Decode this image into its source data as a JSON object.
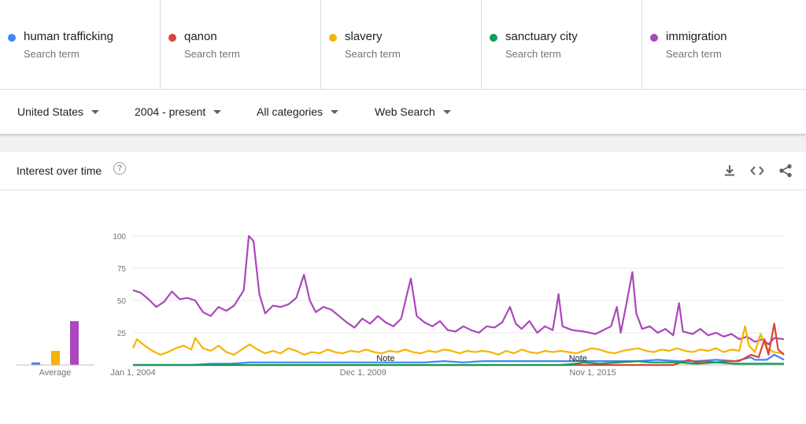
{
  "terms": [
    {
      "name": "human trafficking",
      "sub": "Search term",
      "color": "#4285f4"
    },
    {
      "name": "qanon",
      "sub": "Search term",
      "color": "#db4437"
    },
    {
      "name": "slavery",
      "sub": "Search term",
      "color": "#f4b400"
    },
    {
      "name": "sanctuary city",
      "sub": "Search term",
      "color": "#0f9d58"
    },
    {
      "name": "immigration",
      "sub": "Search term",
      "color": "#ab47bc"
    }
  ],
  "filters": {
    "region": "United States",
    "time": "2004 - present",
    "category": "All categories",
    "search_type": "Web Search"
  },
  "card": {
    "title": "Interest over time",
    "help_icon": "help-icon",
    "tools": [
      "download-icon",
      "embed-code-icon",
      "share-icon"
    ]
  },
  "chart_data": {
    "type": "line",
    "yticks": [
      25,
      50,
      75,
      100
    ],
    "ylim": [
      0,
      100
    ],
    "xlim": [
      2004.0,
      2020.75
    ],
    "xtick_labels": [
      {
        "label": "Jan 1, 2004",
        "x": 2004.0
      },
      {
        "label": "Dec 1, 2009",
        "x": 2009.92
      },
      {
        "label": "Nov 1, 2015",
        "x": 2015.83
      }
    ],
    "notes": [
      {
        "label": "Note",
        "x": 2010.5
      },
      {
        "label": "Note",
        "x": 2015.45
      }
    ],
    "average_label": "Average",
    "averages": [
      {
        "name": "human trafficking",
        "value": 2
      },
      {
        "name": "qanon",
        "value": 0
      },
      {
        "name": "slavery",
        "value": 11
      },
      {
        "name": "sanctuary city",
        "value": 0
      },
      {
        "name": "immigration",
        "value": 34
      }
    ],
    "series": [
      {
        "name": "immigration",
        "points": [
          [
            2004.0,
            58
          ],
          [
            2004.2,
            56
          ],
          [
            2004.4,
            51
          ],
          [
            2004.6,
            45
          ],
          [
            2004.8,
            49
          ],
          [
            2005.0,
            57
          ],
          [
            2005.2,
            51
          ],
          [
            2005.4,
            52
          ],
          [
            2005.6,
            50
          ],
          [
            2005.8,
            41
          ],
          [
            2006.0,
            38
          ],
          [
            2006.2,
            45
          ],
          [
            2006.4,
            42
          ],
          [
            2006.6,
            46
          ],
          [
            2006.85,
            58
          ],
          [
            2006.98,
            100
          ],
          [
            2007.1,
            96
          ],
          [
            2007.25,
            55
          ],
          [
            2007.4,
            40
          ],
          [
            2007.6,
            46
          ],
          [
            2007.8,
            45
          ],
          [
            2008.0,
            47
          ],
          [
            2008.2,
            52
          ],
          [
            2008.4,
            70
          ],
          [
            2008.55,
            50
          ],
          [
            2008.7,
            41
          ],
          [
            2008.9,
            45
          ],
          [
            2009.1,
            43
          ],
          [
            2009.3,
            38
          ],
          [
            2009.5,
            33
          ],
          [
            2009.7,
            29
          ],
          [
            2009.9,
            36
          ],
          [
            2010.1,
            32
          ],
          [
            2010.3,
            38
          ],
          [
            2010.5,
            33
          ],
          [
            2010.7,
            30
          ],
          [
            2010.9,
            36
          ],
          [
            2011.05,
            55
          ],
          [
            2011.15,
            67
          ],
          [
            2011.3,
            38
          ],
          [
            2011.5,
            33
          ],
          [
            2011.7,
            30
          ],
          [
            2011.9,
            34
          ],
          [
            2012.1,
            27
          ],
          [
            2012.3,
            26
          ],
          [
            2012.5,
            30
          ],
          [
            2012.7,
            27
          ],
          [
            2012.9,
            25
          ],
          [
            2013.1,
            30
          ],
          [
            2013.3,
            29
          ],
          [
            2013.5,
            33
          ],
          [
            2013.7,
            45
          ],
          [
            2013.85,
            32
          ],
          [
            2014.0,
            28
          ],
          [
            2014.2,
            34
          ],
          [
            2014.4,
            25
          ],
          [
            2014.6,
            30
          ],
          [
            2014.8,
            27
          ],
          [
            2014.9,
            45
          ],
          [
            2014.95,
            55
          ],
          [
            2015.05,
            30
          ],
          [
            2015.3,
            27
          ],
          [
            2015.6,
            26
          ],
          [
            2015.9,
            24
          ],
          [
            2016.1,
            27
          ],
          [
            2016.3,
            30
          ],
          [
            2016.45,
            45
          ],
          [
            2016.55,
            25
          ],
          [
            2016.7,
            48
          ],
          [
            2016.85,
            72
          ],
          [
            2016.95,
            40
          ],
          [
            2017.1,
            28
          ],
          [
            2017.3,
            30
          ],
          [
            2017.5,
            25
          ],
          [
            2017.7,
            28
          ],
          [
            2017.9,
            23
          ],
          [
            2018.05,
            48
          ],
          [
            2018.15,
            26
          ],
          [
            2018.4,
            24
          ],
          [
            2018.6,
            28
          ],
          [
            2018.8,
            23
          ],
          [
            2019.0,
            25
          ],
          [
            2019.2,
            22
          ],
          [
            2019.4,
            24
          ],
          [
            2019.6,
            20
          ],
          [
            2019.8,
            22
          ],
          [
            2020.0,
            18
          ],
          [
            2020.2,
            20
          ],
          [
            2020.35,
            16
          ],
          [
            2020.5,
            21
          ],
          [
            2020.75,
            20
          ]
        ]
      },
      {
        "name": "slavery",
        "points": [
          [
            2004.0,
            13
          ],
          [
            2004.1,
            20
          ],
          [
            2004.3,
            15
          ],
          [
            2004.5,
            11
          ],
          [
            2004.7,
            8
          ],
          [
            2004.9,
            10
          ],
          [
            2005.1,
            13
          ],
          [
            2005.3,
            15
          ],
          [
            2005.5,
            12
          ],
          [
            2005.6,
            21
          ],
          [
            2005.8,
            13
          ],
          [
            2006.0,
            11
          ],
          [
            2006.2,
            15
          ],
          [
            2006.4,
            10
          ],
          [
            2006.6,
            8
          ],
          [
            2006.8,
            12
          ],
          [
            2007.0,
            16
          ],
          [
            2007.2,
            12
          ],
          [
            2007.4,
            9
          ],
          [
            2007.6,
            11
          ],
          [
            2007.8,
            9
          ],
          [
            2008.0,
            13
          ],
          [
            2008.2,
            11
          ],
          [
            2008.4,
            8
          ],
          [
            2008.6,
            10
          ],
          [
            2008.8,
            9
          ],
          [
            2009.0,
            12
          ],
          [
            2009.2,
            10
          ],
          [
            2009.4,
            9
          ],
          [
            2009.6,
            11
          ],
          [
            2009.8,
            10
          ],
          [
            2010.0,
            12
          ],
          [
            2010.2,
            10
          ],
          [
            2010.4,
            9
          ],
          [
            2010.6,
            11
          ],
          [
            2010.8,
            10
          ],
          [
            2011.0,
            12
          ],
          [
            2011.2,
            10
          ],
          [
            2011.4,
            9
          ],
          [
            2011.6,
            11
          ],
          [
            2011.8,
            10
          ],
          [
            2012.0,
            12
          ],
          [
            2012.2,
            11
          ],
          [
            2012.4,
            9
          ],
          [
            2012.6,
            11
          ],
          [
            2012.8,
            10
          ],
          [
            2013.0,
            11
          ],
          [
            2013.2,
            10
          ],
          [
            2013.4,
            8
          ],
          [
            2013.6,
            11
          ],
          [
            2013.8,
            9
          ],
          [
            2014.0,
            12
          ],
          [
            2014.2,
            10
          ],
          [
            2014.4,
            9
          ],
          [
            2014.6,
            11
          ],
          [
            2014.8,
            10
          ],
          [
            2015.0,
            11
          ],
          [
            2015.2,
            10
          ],
          [
            2015.4,
            9
          ],
          [
            2015.6,
            11
          ],
          [
            2015.8,
            13
          ],
          [
            2016.0,
            12
          ],
          [
            2016.2,
            10
          ],
          [
            2016.4,
            9
          ],
          [
            2016.6,
            11
          ],
          [
            2016.8,
            12
          ],
          [
            2017.0,
            13
          ],
          [
            2017.2,
            11
          ],
          [
            2017.4,
            10
          ],
          [
            2017.6,
            12
          ],
          [
            2017.8,
            11
          ],
          [
            2018.0,
            13
          ],
          [
            2018.2,
            11
          ],
          [
            2018.4,
            10
          ],
          [
            2018.6,
            12
          ],
          [
            2018.8,
            11
          ],
          [
            2019.0,
            13
          ],
          [
            2019.2,
            10
          ],
          [
            2019.4,
            12
          ],
          [
            2019.6,
            11
          ],
          [
            2019.75,
            30
          ],
          [
            2019.85,
            15
          ],
          [
            2020.0,
            10
          ],
          [
            2020.15,
            24
          ],
          [
            2020.3,
            13
          ],
          [
            2020.5,
            10
          ],
          [
            2020.75,
            9
          ]
        ]
      },
      {
        "name": "human trafficking",
        "points": [
          [
            2004.0,
            0
          ],
          [
            2005.5,
            0
          ],
          [
            2006.0,
            1
          ],
          [
            2006.5,
            1
          ],
          [
            2007.0,
            2
          ],
          [
            2007.5,
            2
          ],
          [
            2008.0,
            2
          ],
          [
            2008.5,
            2
          ],
          [
            2009.0,
            2
          ],
          [
            2009.5,
            2
          ],
          [
            2010.0,
            2
          ],
          [
            2010.5,
            2
          ],
          [
            2011.0,
            2
          ],
          [
            2011.5,
            2
          ],
          [
            2012.0,
            3
          ],
          [
            2012.5,
            2
          ],
          [
            2013.0,
            3
          ],
          [
            2013.5,
            3
          ],
          [
            2014.0,
            3
          ],
          [
            2014.5,
            3
          ],
          [
            2015.0,
            3
          ],
          [
            2015.5,
            3
          ],
          [
            2016.0,
            3
          ],
          [
            2016.5,
            3
          ],
          [
            2017.0,
            3
          ],
          [
            2017.5,
            4
          ],
          [
            2018.0,
            3
          ],
          [
            2018.5,
            3
          ],
          [
            2019.0,
            4
          ],
          [
            2019.5,
            3
          ],
          [
            2019.9,
            6
          ],
          [
            2020.0,
            4
          ],
          [
            2020.3,
            4
          ],
          [
            2020.5,
            8
          ],
          [
            2020.75,
            4
          ]
        ]
      },
      {
        "name": "qanon",
        "points": [
          [
            2004.0,
            0
          ],
          [
            2017.9,
            0
          ],
          [
            2018.1,
            2
          ],
          [
            2018.3,
            4
          ],
          [
            2018.5,
            2
          ],
          [
            2018.7,
            3
          ],
          [
            2019.0,
            2
          ],
          [
            2019.3,
            3
          ],
          [
            2019.6,
            3
          ],
          [
            2019.9,
            8
          ],
          [
            2020.1,
            6
          ],
          [
            2020.25,
            20
          ],
          [
            2020.35,
            8
          ],
          [
            2020.5,
            32
          ],
          [
            2020.6,
            12
          ],
          [
            2020.75,
            8
          ]
        ]
      },
      {
        "name": "sanctuary city",
        "points": [
          [
            2004.0,
            0
          ],
          [
            2015.0,
            0
          ],
          [
            2015.4,
            1
          ],
          [
            2015.6,
            2
          ],
          [
            2016.0,
            1
          ],
          [
            2016.5,
            2
          ],
          [
            2017.0,
            3
          ],
          [
            2017.3,
            2
          ],
          [
            2017.6,
            2
          ],
          [
            2018.0,
            2
          ],
          [
            2018.5,
            1
          ],
          [
            2019.0,
            2
          ],
          [
            2019.5,
            1
          ],
          [
            2020.0,
            1
          ],
          [
            2020.75,
            1
          ]
        ]
      }
    ]
  }
}
